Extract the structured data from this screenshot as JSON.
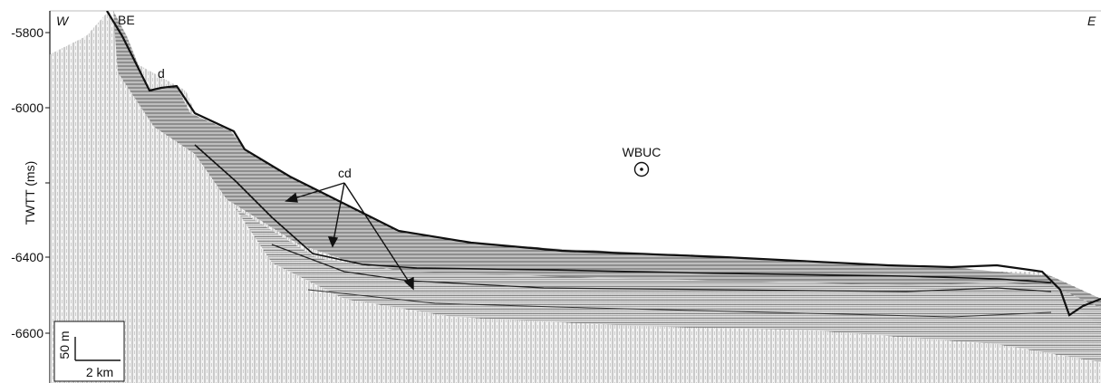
{
  "figure": {
    "y_axis": {
      "label": "TWTT (ms)",
      "ticks": [
        {
          "label": "-5800"
        },
        {
          "label": "-6000"
        },
        {
          "label": "-6400"
        },
        {
          "label": "-6600"
        }
      ]
    },
    "directions": {
      "west": "W",
      "east": "E"
    },
    "annotations": {
      "be": "BE",
      "d": "d",
      "cd": "cd",
      "wbuc": "WBUC"
    },
    "scale_bar": {
      "vertical": "50 m",
      "horizontal": "2 km"
    },
    "colors": {
      "ink": "#111111",
      "background": "#ffffff"
    }
  }
}
